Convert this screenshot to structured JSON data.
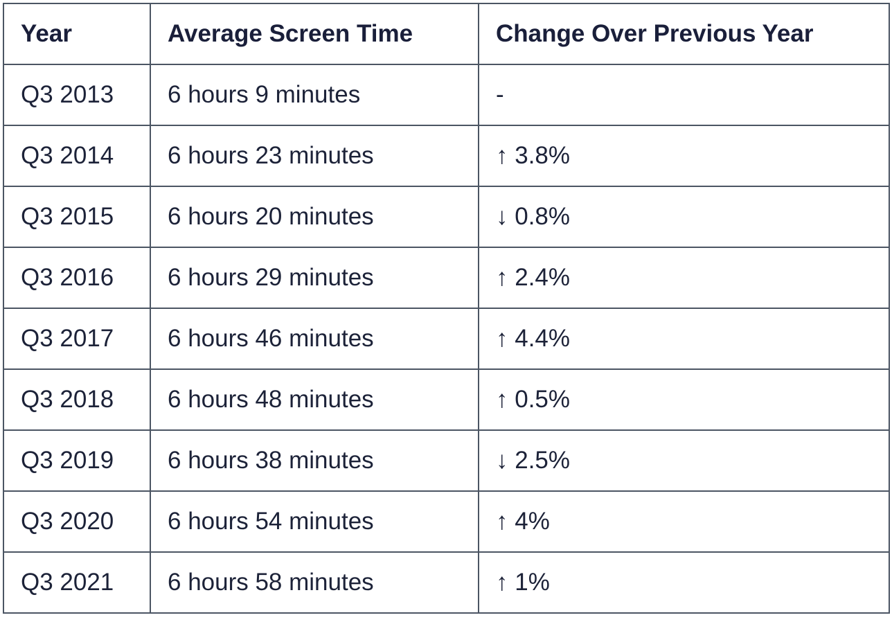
{
  "table": {
    "headers": [
      "Year",
      "Average Screen Time",
      "Change Over Previous Year"
    ],
    "rows": [
      [
        "Q3 2013",
        "6 hours 9 minutes",
        "-"
      ],
      [
        "Q3 2014",
        "6 hours 23 minutes",
        "↑ 3.8%"
      ],
      [
        "Q3 2015",
        "6 hours 20 minutes",
        "↓ 0.8%"
      ],
      [
        "Q3 2016",
        "6 hours 29 minutes",
        "↑ 2.4%"
      ],
      [
        "Q3 2017",
        "6 hours 46 minutes",
        "↑ 4.4%"
      ],
      [
        "Q3 2018",
        "6 hours 48 minutes",
        "↑ 0.5%"
      ],
      [
        "Q3 2019",
        "6 hours 38 minutes",
        "↓ 2.5%"
      ],
      [
        "Q3 2020",
        "6 hours 54 minutes",
        "↑ 4%"
      ],
      [
        "Q3 2021",
        "6 hours 58 minutes",
        "↑ 1%"
      ]
    ]
  }
}
